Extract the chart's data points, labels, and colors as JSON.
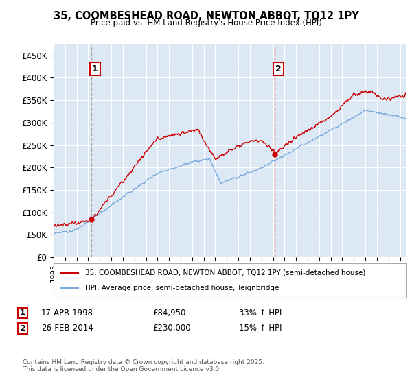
{
  "title": "35, COOMBESHEAD ROAD, NEWTON ABBOT, TQ12 1PY",
  "subtitle": "Price paid vs. HM Land Registry's House Price Index (HPI)",
  "red_label": "35, COOMBESHEAD ROAD, NEWTON ABBOT, TQ12 1PY (semi-detached house)",
  "blue_label": "HPI: Average price, semi-detached house, Teignbridge",
  "transaction1": {
    "label": "1",
    "date": "17-APR-1998",
    "price": "£84,950",
    "hpi": "33% ↑ HPI"
  },
  "transaction2": {
    "label": "2",
    "date": "26-FEB-2014",
    "price": "£230,000",
    "hpi": "15% ↑ HPI"
  },
  "footer": "Contains HM Land Registry data © Crown copyright and database right 2025.\nThis data is licensed under the Open Government Licence v3.0.",
  "ylim": [
    0,
    475000
  ],
  "yticks": [
    0,
    50000,
    100000,
    150000,
    200000,
    250000,
    300000,
    350000,
    400000,
    450000
  ],
  "ytick_labels": [
    "£0",
    "£50K",
    "£100K",
    "£150K",
    "£200K",
    "£250K",
    "£300K",
    "£350K",
    "£400K",
    "£450K"
  ],
  "xmin": 1995,
  "xmax": 2025.5,
  "vline1_x": 1998.29,
  "vline2_x": 2014.15,
  "purchase1_x": 1998.29,
  "purchase1_y": 84950,
  "purchase2_x": 2014.15,
  "purchase2_y": 230000,
  "background_color": "#ffffff",
  "plot_bg_color": "#dce9f5",
  "grid_color": "#ffffff",
  "red_color": "#cc0000",
  "blue_color": "#7aaadd",
  "vline1_color": "#aaaaaa",
  "vline2_color": "#ff4444",
  "box_edge_color": "#cc0000",
  "figsize": [
    6.0,
    5.6
  ],
  "dpi": 100
}
